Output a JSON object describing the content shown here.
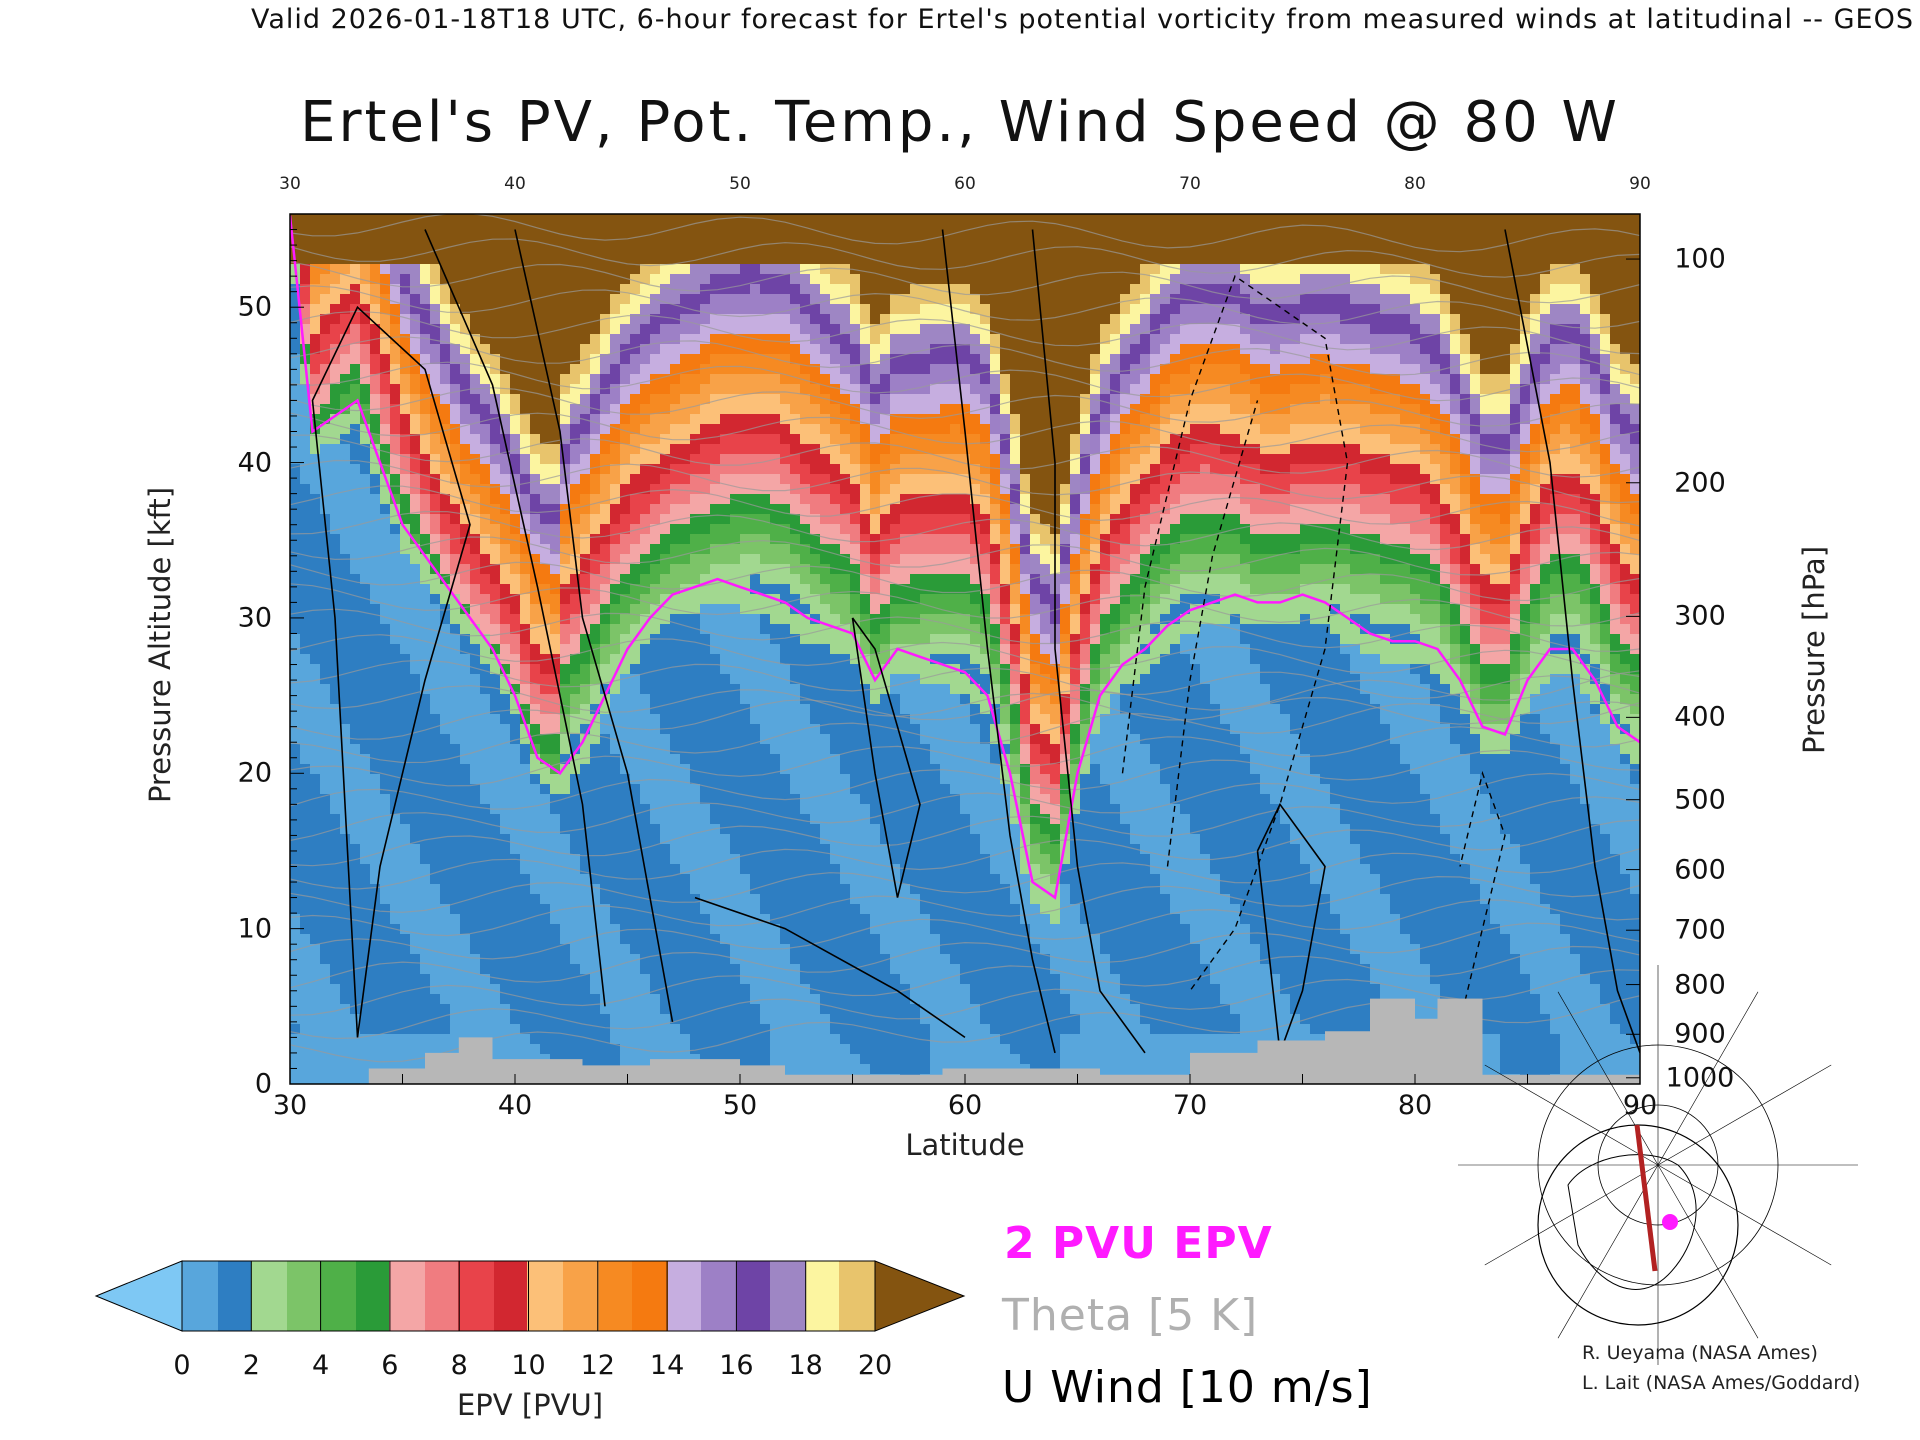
{
  "header": "Valid 2026-01-18T18 UTC, 6-hour forecast for Ertel's potential vorticity from measured winds at latitudinal -- GEOS",
  "chart_data": {
    "type": "heatmap",
    "title": "Ertel's PV, Pot. Temp., Wind Speed @ 80 W",
    "xlabel": "Latitude",
    "ylabel": "Pressure Altitude [kft]",
    "ylabel_right": "Pressure [hPa]",
    "xlim": [
      30,
      90
    ],
    "ylim": [
      0,
      56
    ],
    "x_ticks": [
      "30",
      "40",
      "50",
      "60",
      "70",
      "80",
      "90"
    ],
    "top_ticks": [
      "30",
      "40",
      "50",
      "60",
      "70",
      "80",
      "90"
    ],
    "y_ticks": [
      "0",
      "10",
      "20",
      "30",
      "40",
      "50"
    ],
    "pressure_ticks": [
      {
        "label": "100",
        "alt": 53.1
      },
      {
        "label": "200",
        "alt": 38.7
      },
      {
        "label": "300",
        "alt": 30.1
      },
      {
        "label": "400",
        "alt": 23.6
      },
      {
        "label": "500",
        "alt": 18.3
      },
      {
        "label": "600",
        "alt": 13.8
      },
      {
        "label": "700",
        "alt": 9.9
      },
      {
        "label": "800",
        "alt": 6.4
      },
      {
        "label": "900",
        "alt": 3.2
      },
      {
        "label": "1000",
        "alt": 0.4
      }
    ],
    "tropopause_2pvu_kft": [
      [
        30,
        56
      ],
      [
        31,
        42
      ],
      [
        32,
        43
      ],
      [
        33,
        44
      ],
      [
        34,
        40
      ],
      [
        35,
        36
      ],
      [
        36,
        34
      ],
      [
        37,
        32
      ],
      [
        38,
        30
      ],
      [
        39,
        28
      ],
      [
        40,
        25
      ],
      [
        41,
        21
      ],
      [
        42,
        20
      ],
      [
        43,
        22
      ],
      [
        44,
        25
      ],
      [
        45,
        28
      ],
      [
        46,
        30
      ],
      [
        47,
        31.5
      ],
      [
        48,
        32
      ],
      [
        49,
        32.5
      ],
      [
        50,
        32
      ],
      [
        51,
        31.5
      ],
      [
        52,
        31
      ],
      [
        53,
        30
      ],
      [
        54,
        29.5
      ],
      [
        55,
        29
      ],
      [
        56,
        26
      ],
      [
        57,
        28
      ],
      [
        58,
        27.5
      ],
      [
        59,
        27
      ],
      [
        60,
        26.5
      ],
      [
        61,
        25
      ],
      [
        62,
        20
      ],
      [
        63,
        13
      ],
      [
        64,
        12
      ],
      [
        65,
        20
      ],
      [
        66,
        25
      ],
      [
        67,
        27
      ],
      [
        68,
        28
      ],
      [
        69,
        29.5
      ],
      [
        70,
        30.5
      ],
      [
        71,
        31
      ],
      [
        72,
        31.5
      ],
      [
        73,
        31
      ],
      [
        74,
        31
      ],
      [
        75,
        31.5
      ],
      [
        76,
        31
      ],
      [
        77,
        30
      ],
      [
        78,
        29
      ],
      [
        79,
        28.5
      ],
      [
        80,
        28.5
      ],
      [
        81,
        28
      ],
      [
        82,
        26
      ],
      [
        83,
        23
      ],
      [
        84,
        22.5
      ],
      [
        85,
        26
      ],
      [
        86,
        28
      ],
      [
        87,
        28
      ],
      [
        88,
        26
      ],
      [
        89,
        23
      ],
      [
        90,
        22
      ]
    ],
    "epv_bands_pvu": [
      {
        "lo": -1,
        "hi": 0,
        "color": "#7ec8f4"
      },
      {
        "lo": 0,
        "hi": 1,
        "color": "#58a6dc"
      },
      {
        "lo": 1,
        "hi": 2,
        "color": "#2e7ec2"
      },
      {
        "lo": 2,
        "hi": 3,
        "color": "#a2d890"
      },
      {
        "lo": 3,
        "hi": 4,
        "color": "#7cc468"
      },
      {
        "lo": 4,
        "hi": 5,
        "color": "#4fb048"
      },
      {
        "lo": 5,
        "hi": 6,
        "color": "#2a9b38"
      },
      {
        "lo": 6,
        "hi": 7,
        "color": "#f4a6a6"
      },
      {
        "lo": 7,
        "hi": 8,
        "color": "#f07c80"
      },
      {
        "lo": 8,
        "hi": 9,
        "color": "#e8434a"
      },
      {
        "lo": 9,
        "hi": 10,
        "color": "#d22730"
      },
      {
        "lo": 10,
        "hi": 11,
        "color": "#fcc078"
      },
      {
        "lo": 11,
        "hi": 12,
        "color": "#f8a248"
      },
      {
        "lo": 12,
        "hi": 13,
        "color": "#f68a22"
      },
      {
        "lo": 13,
        "hi": 14,
        "color": "#f57a10"
      },
      {
        "lo": 14,
        "hi": 15,
        "color": "#c6aee0"
      },
      {
        "lo": 15,
        "hi": 16,
        "color": "#9d80c6"
      },
      {
        "lo": 16,
        "hi": 17,
        "color": "#6e44a6"
      },
      {
        "lo": 17,
        "hi": 18,
        "color": "#9e86c4"
      },
      {
        "lo": 18,
        "hi": 19,
        "color": "#fcf5a0"
      },
      {
        "lo": 19,
        "hi": 20,
        "color": "#e8c46c"
      },
      {
        "lo": 20,
        "hi": 21,
        "color": "#845410"
      }
    ],
    "colorbar": {
      "label": "EPV [PVU]",
      "ticks": [
        "0",
        "2",
        "4",
        "6",
        "8",
        "10",
        "12",
        "14",
        "16",
        "18",
        "20"
      ],
      "under_color": "#7ec8f4",
      "over_color": "#845410"
    },
    "legend": [
      {
        "text": "2 PVU EPV",
        "color": "#ff1aff"
      },
      {
        "text": "Theta [5 K]",
        "color": "#b0b0b0"
      },
      {
        "text": "U Wind [10 m/s]",
        "color": "#000000"
      }
    ]
  },
  "credits": [
    "R. Ueyama (NASA Ames)",
    "L. Lait (NASA Ames/Goddard)"
  ]
}
